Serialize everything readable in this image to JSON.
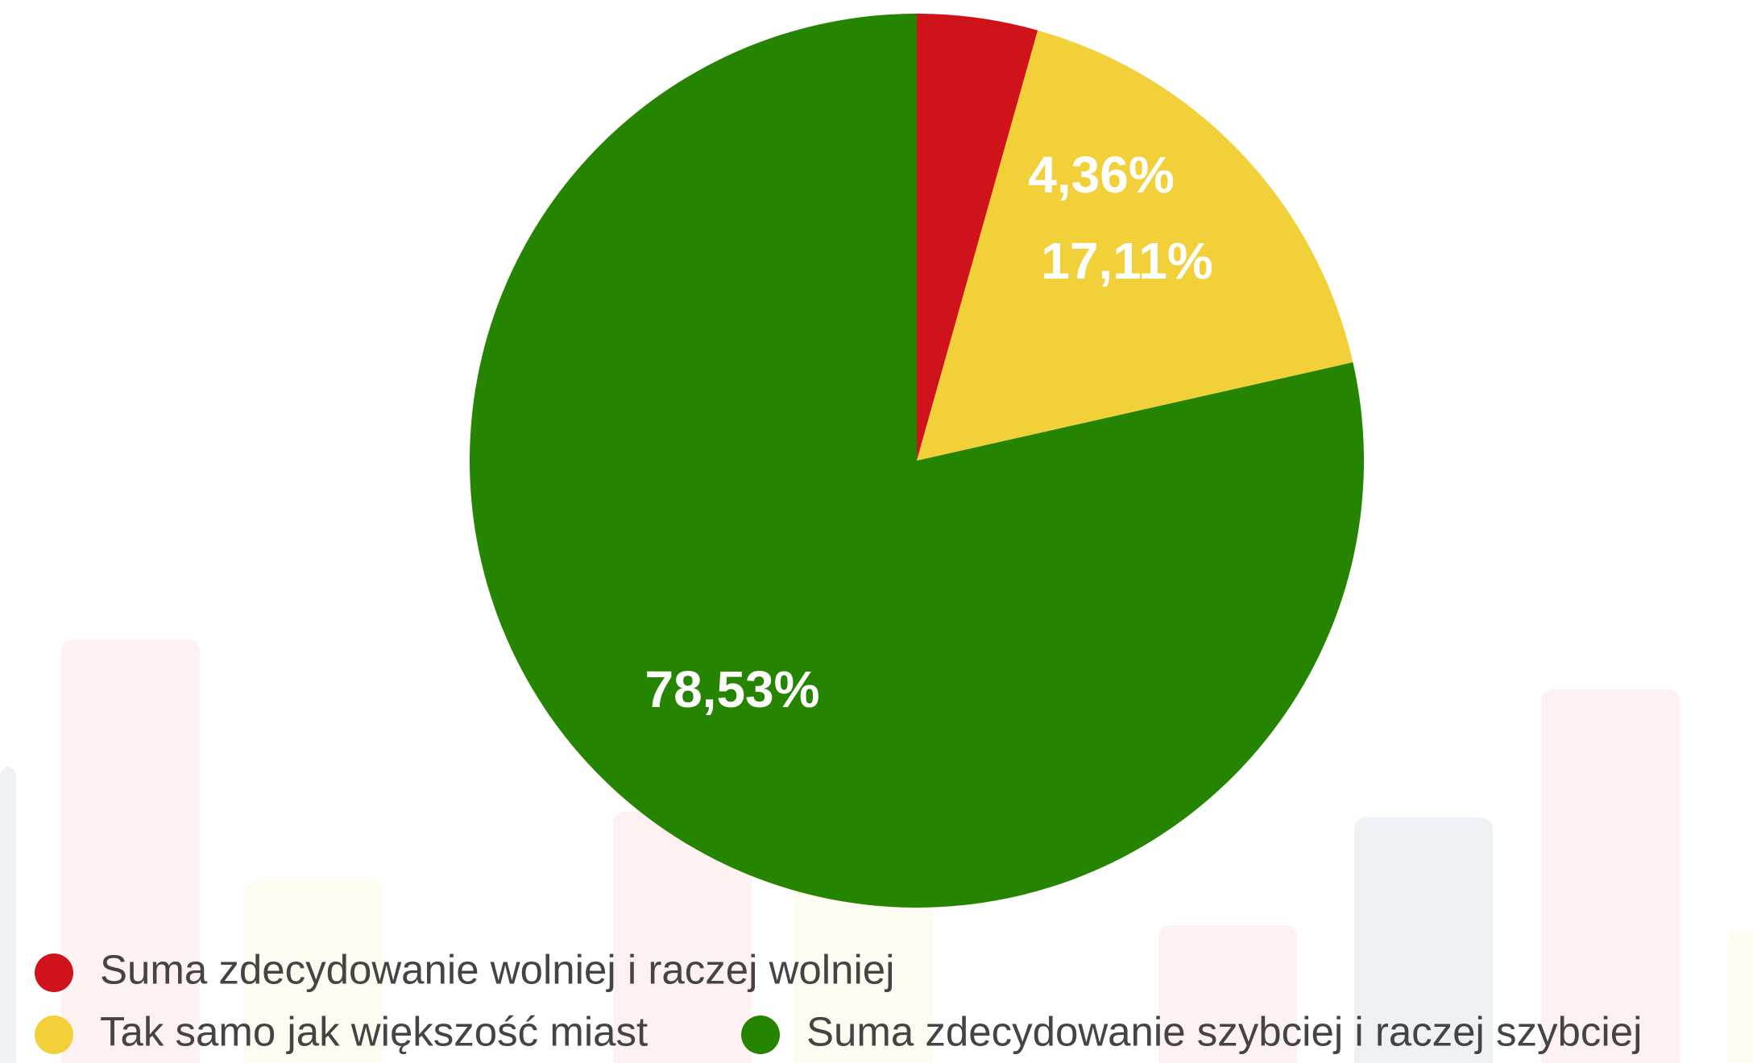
{
  "chart_data": {
    "type": "pie",
    "categories": [
      "Suma zdecydowanie wolniej i raczej wolniej",
      "Tak samo jak większość miast",
      "Suma zdecydowanie szybciej i raczej szybciej"
    ],
    "values": [
      4.36,
      17.11,
      78.53
    ],
    "value_labels": [
      "4,36%",
      "17,11%",
      "78,53%"
    ],
    "colors": [
      "#d0121b",
      "#f2d03a",
      "#268500"
    ],
    "legend": "bottom"
  }
}
